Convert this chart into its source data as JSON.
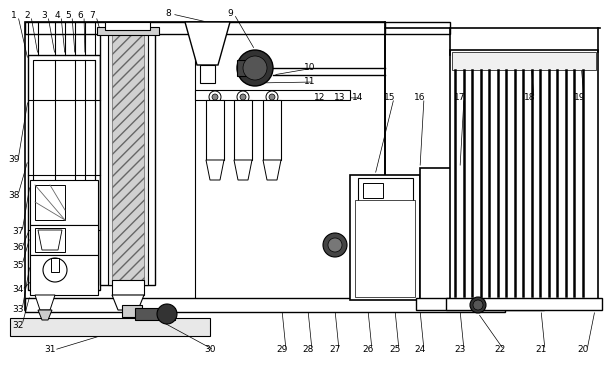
{
  "bg_color": "#ffffff",
  "fig_width": 6.06,
  "fig_height": 3.67,
  "dpi": 100
}
